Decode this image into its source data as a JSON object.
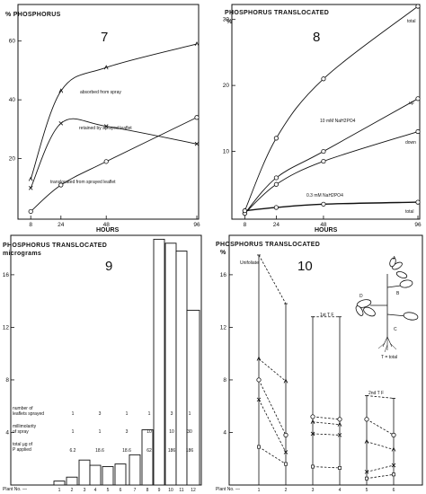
{
  "chart_data": [
    {
      "type": "line",
      "panel_number": "7",
      "title": "% PHOSPHORUS",
      "xlabel": "HOURS",
      "x_ticks": [
        "8",
        "24",
        "48",
        "96"
      ],
      "y_ticks": [
        "60",
        "40",
        "20"
      ],
      "xlim": [
        6,
        96
      ],
      "ylim": [
        0,
        70
      ],
      "series": [
        {
          "name": "absorbed from spray",
          "marker": "A",
          "x": [
            8,
            24,
            48,
            96
          ],
          "y": [
            13,
            43,
            51,
            59
          ]
        },
        {
          "name": "retained by sprayed leaflet",
          "marker": "x",
          "x": [
            8,
            24,
            48,
            96
          ],
          "y": [
            10,
            32,
            31,
            25
          ]
        },
        {
          "name": "translocated from sprayed leaflet",
          "marker": "o",
          "x": [
            8,
            24,
            48,
            96
          ],
          "y": [
            2,
            11,
            19,
            34
          ]
        }
      ]
    },
    {
      "type": "line",
      "panel_number": "8",
      "title": "PHOSPHORUS TRANSLOCATED",
      "unit": "%",
      "xlabel": "HOURS",
      "x_ticks": [
        "8",
        "24",
        "48",
        "96"
      ],
      "y_ticks": [
        "30",
        "20",
        "10"
      ],
      "xlim": [
        6,
        96
      ],
      "ylim": [
        0,
        32
      ],
      "annotations": [
        "10 mM NaH2PO4",
        "0.3 mM NaH2PO4"
      ],
      "series": [
        {
          "name": "total",
          "concentration": "10 mM NaH2PO4",
          "x": [
            8,
            24,
            48,
            96
          ],
          "y": [
            1,
            12,
            21,
            32
          ]
        },
        {
          "name": "up",
          "concentration": "10 mM NaH2PO4",
          "x": [
            8,
            24,
            48,
            96
          ],
          "y": [
            0.6,
            6,
            10,
            18
          ]
        },
        {
          "name": "down",
          "concentration": "10 mM NaH2PO4",
          "x": [
            8,
            24,
            48,
            96
          ],
          "y": [
            0.6,
            5,
            8.5,
            13
          ]
        },
        {
          "name": "total",
          "concentration": "0.3 mM NaH2PO4",
          "x": [
            8,
            24,
            48,
            96
          ],
          "y": [
            1,
            1.5,
            2,
            2.3
          ]
        }
      ]
    },
    {
      "type": "bar",
      "panel_number": "9",
      "title": "PHOSPHORUS TRANSLOCATED",
      "ylabel": "micrograms",
      "xlabel": "Plant No. —",
      "y_ticks": [
        "16",
        "12",
        "8",
        "4"
      ],
      "ylim": [
        0,
        19
      ],
      "categories": [
        "1",
        "2",
        "3",
        "4",
        "5",
        "6",
        "7",
        "8",
        "9",
        "10",
        "11",
        "12"
      ],
      "values": [
        0.3,
        0.6,
        1.9,
        1.5,
        1.4,
        1.6,
        2.3,
        4.2,
        18.7,
        18.4,
        17.8,
        13.3
      ],
      "table": {
        "row_labels": [
          [
            "number of",
            "leaflets sprayed"
          ],
          [
            "millimolarity",
            "of spray"
          ],
          [
            "total µg of",
            "P applied"
          ]
        ],
        "columns": [
          [
            "1",
            "1",
            "6.2"
          ],
          [
            "3",
            "1",
            "18.6"
          ],
          [
            "1",
            "3",
            "18.6"
          ],
          [
            "1",
            "10",
            "62"
          ],
          [
            "3",
            "10",
            "186"
          ],
          [
            "1",
            "30",
            "186"
          ]
        ]
      }
    },
    {
      "type": "line",
      "panel_number": "10",
      "title": "PHOSPHORUS TRANSLOCATED",
      "unit": "%",
      "xlabel": "Plant No. —",
      "x_ticks": [
        "1",
        "2",
        "3",
        "4",
        "5",
        "6"
      ],
      "y_ticks": [
        "16",
        "12",
        "8",
        "4"
      ],
      "ylim": [
        0,
        19
      ],
      "annotations": [
        "Unifoliate",
        "1st T F",
        "2nd T F",
        "T = total"
      ],
      "plant_labels": [
        "A",
        "B",
        "C",
        "D"
      ],
      "series": [
        {
          "name": "T",
          "x": [
            1,
            2,
            3,
            4,
            5,
            6
          ],
          "y": [
            17.5,
            13.8,
            12.8,
            12.8,
            6.8,
            6.6
          ]
        },
        {
          "name": "A",
          "x": [
            1,
            2,
            3,
            4,
            5,
            6
          ],
          "y": [
            8,
            3.8,
            5.2,
            5.0,
            5.0,
            3.8
          ]
        },
        {
          "name": "B",
          "x": [
            1,
            2,
            3,
            4,
            5,
            6
          ],
          "y": [
            9.6,
            7.9,
            4.8,
            4.6,
            3.3,
            2.7
          ]
        },
        {
          "name": "C",
          "x": [
            1,
            2,
            3,
            4,
            5,
            6
          ],
          "y": [
            6.5,
            2.5,
            3.9,
            3.8,
            1.0,
            1.5
          ]
        },
        {
          "name": "D",
          "x": [
            1,
            2,
            3,
            4,
            5,
            6
          ],
          "y": [
            2.9,
            1.6,
            1.4,
            1.3,
            0.5,
            0.8
          ]
        }
      ]
    }
  ]
}
